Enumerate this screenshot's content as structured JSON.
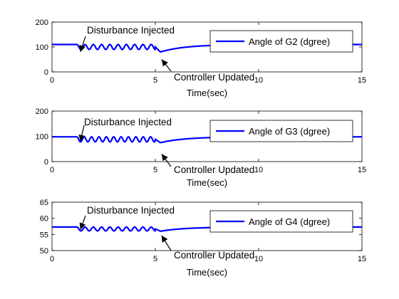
{
  "chart_data": [
    {
      "type": "line",
      "xlabel": "Time(sec)",
      "ylabel": "",
      "xlim": [
        0,
        15
      ],
      "ylim": [
        0,
        200
      ],
      "xticks": [
        "0",
        "5",
        "10",
        "15"
      ],
      "yticks": [
        "0",
        "100",
        "200"
      ],
      "legend": "top-right",
      "grid": false,
      "series": [
        {
          "name": "Angle of G2 (dgree)",
          "color": "#0000ff",
          "baseline": 110,
          "disturbance_start": 1.2,
          "oscillation_end": 5.0,
          "oscillation_amplitude": 20,
          "oscillation_frequency_hz": 2.5,
          "dip_after_update": 80,
          "recovery_time_constant": 1.2
        }
      ],
      "annotations": [
        {
          "text": "Disturbance Injected",
          "point": [
            1.2,
            80
          ]
        },
        {
          "text": "Controller Updated",
          "point": [
            5.2,
            50
          ]
        }
      ]
    },
    {
      "type": "line",
      "xlabel": "Time(sec)",
      "ylabel": "",
      "xlim": [
        0,
        15
      ],
      "ylim": [
        0,
        200
      ],
      "xticks": [
        "0",
        "5",
        "10",
        "15"
      ],
      "yticks": [
        "0",
        "100",
        "200"
      ],
      "legend": "top-right",
      "grid": false,
      "series": [
        {
          "name": "Angle of G3 (dgree)",
          "color": "#0000ff",
          "baseline": 98,
          "disturbance_start": 1.2,
          "oscillation_end": 5.0,
          "oscillation_amplitude": 20,
          "oscillation_frequency_hz": 2.8,
          "dip_after_update": 75,
          "recovery_time_constant": 1.2
        }
      ],
      "annotations": [
        {
          "text": "Disturbance Injected",
          "point": [
            1.2,
            80
          ]
        },
        {
          "text": "Controller Updated",
          "point": [
            5.2,
            30
          ]
        }
      ]
    },
    {
      "type": "line",
      "xlabel": "Time(sec)",
      "ylabel": "",
      "xlim": [
        0,
        15
      ],
      "ylim": [
        50,
        65
      ],
      "xticks": [
        "0",
        "5",
        "10",
        "15"
      ],
      "yticks": [
        "50",
        "55",
        "60",
        "65"
      ],
      "legend": "top-right",
      "grid": false,
      "series": [
        {
          "name": "Angle of G4 (dgree)",
          "color": "#0000ff",
          "baseline": 57.3,
          "disturbance_start": 1.2,
          "oscillation_end": 5.0,
          "oscillation_amplitude": 1.2,
          "oscillation_frequency_hz": 2.5,
          "dip_after_update": 56.0,
          "recovery_time_constant": 1.2
        }
      ],
      "annotations": [
        {
          "text": "Disturbance Injected",
          "point": [
            1.2,
            56.5
          ]
        },
        {
          "text": "Controller Updated",
          "point": [
            5.2,
            54.7
          ]
        }
      ]
    }
  ]
}
